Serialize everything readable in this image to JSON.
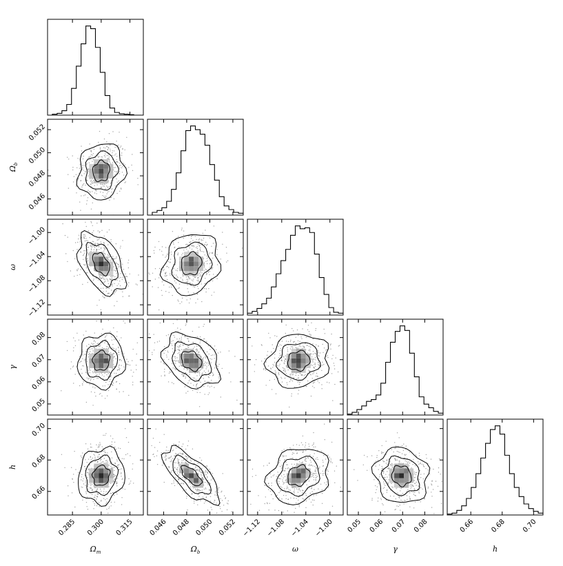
{
  "chart_data": {
    "type": "corner",
    "grid": false,
    "color": "#000000",
    "parameters": [
      {
        "key": "omega_m",
        "label": "Ω",
        "sub": "m",
        "range": [
          0.272,
          0.322
        ],
        "ticks": [
          0.285,
          0.3,
          0.315
        ],
        "tick_labels": [
          "0.285",
          "0.300",
          "0.315"
        ],
        "mean": 0.3,
        "sigma": 0.0055
      },
      {
        "key": "omega_b",
        "label": "Ω",
        "sub": "b",
        "range": [
          0.0446,
          0.0529
        ],
        "ticks": [
          0.046,
          0.048,
          0.05,
          0.052
        ],
        "tick_labels": [
          "0.046",
          "0.048",
          "0.050",
          "0.052"
        ],
        "mean": 0.0484,
        "sigma": 0.0011
      },
      {
        "key": "w",
        "label": "ω",
        "sub": "",
        "range": [
          -1.137,
          -0.978
        ],
        "ticks": [
          -1.12,
          -1.08,
          -1.04,
          -1.0
        ],
        "tick_labels": [
          "−1.12",
          "−1.08",
          "−1.04",
          "−1.00"
        ],
        "mean": -1.052,
        "sigma": 0.023
      },
      {
        "key": "gamma",
        "label": "γ",
        "sub": "",
        "range": [
          0.045,
          0.0883
        ],
        "ticks": [
          0.05,
          0.06,
          0.07,
          0.08
        ],
        "tick_labels": [
          "0.05",
          "0.06",
          "0.07",
          "0.08"
        ],
        "mean": 0.0695,
        "sigma": 0.0055
      },
      {
        "key": "h",
        "label": "h",
        "sub": "",
        "range": [
          0.645,
          0.706
        ],
        "ticks": [
          0.66,
          0.68,
          0.7
        ],
        "tick_labels": [
          "0.66",
          "0.68",
          "0.70"
        ],
        "mean": 0.67,
        "sigma": 0.008
      }
    ],
    "marginals": [
      [
        0,
        0.01,
        0.02,
        0.05,
        0.12,
        0.3,
        0.55,
        0.8,
        1.0,
        0.97,
        0.76,
        0.48,
        0.22,
        0.08,
        0.03,
        0.015,
        0.01,
        0.005,
        0,
        0
      ],
      [
        0,
        0.03,
        0.05,
        0.08,
        0.15,
        0.28,
        0.46,
        0.7,
        0.92,
        0.97,
        0.93,
        0.88,
        0.76,
        0.55,
        0.38,
        0.2,
        0.1,
        0.06,
        0.03,
        0.02
      ],
      [
        0.02,
        0.04,
        0.07,
        0.12,
        0.18,
        0.3,
        0.44,
        0.58,
        0.7,
        0.85,
        0.95,
        0.92,
        0.93,
        0.88,
        0.65,
        0.4,
        0.22,
        0.08,
        0.03,
        0.02
      ],
      [
        0.01,
        0.03,
        0.06,
        0.1,
        0.15,
        0.17,
        0.22,
        0.35,
        0.58,
        0.8,
        0.92,
        0.98,
        0.93,
        0.68,
        0.42,
        0.2,
        0.12,
        0.08,
        0.04,
        0.02
      ],
      [
        0.01,
        0.02,
        0.05,
        0.1,
        0.18,
        0.3,
        0.45,
        0.62,
        0.78,
        0.93,
        0.97,
        0.88,
        0.65,
        0.45,
        0.3,
        0.2,
        0.12,
        0.07,
        0.04,
        0.02
      ]
    ],
    "correlations": {
      "1-0": 0.1,
      "2-0": -0.45,
      "2-1": 0.15,
      "3-0": 0.05,
      "3-1": -0.3,
      "3-2": 0.1,
      "4-0": 0.1,
      "4-1": -0.7,
      "4-2": 0.2,
      "4-3": -0.1
    }
  }
}
